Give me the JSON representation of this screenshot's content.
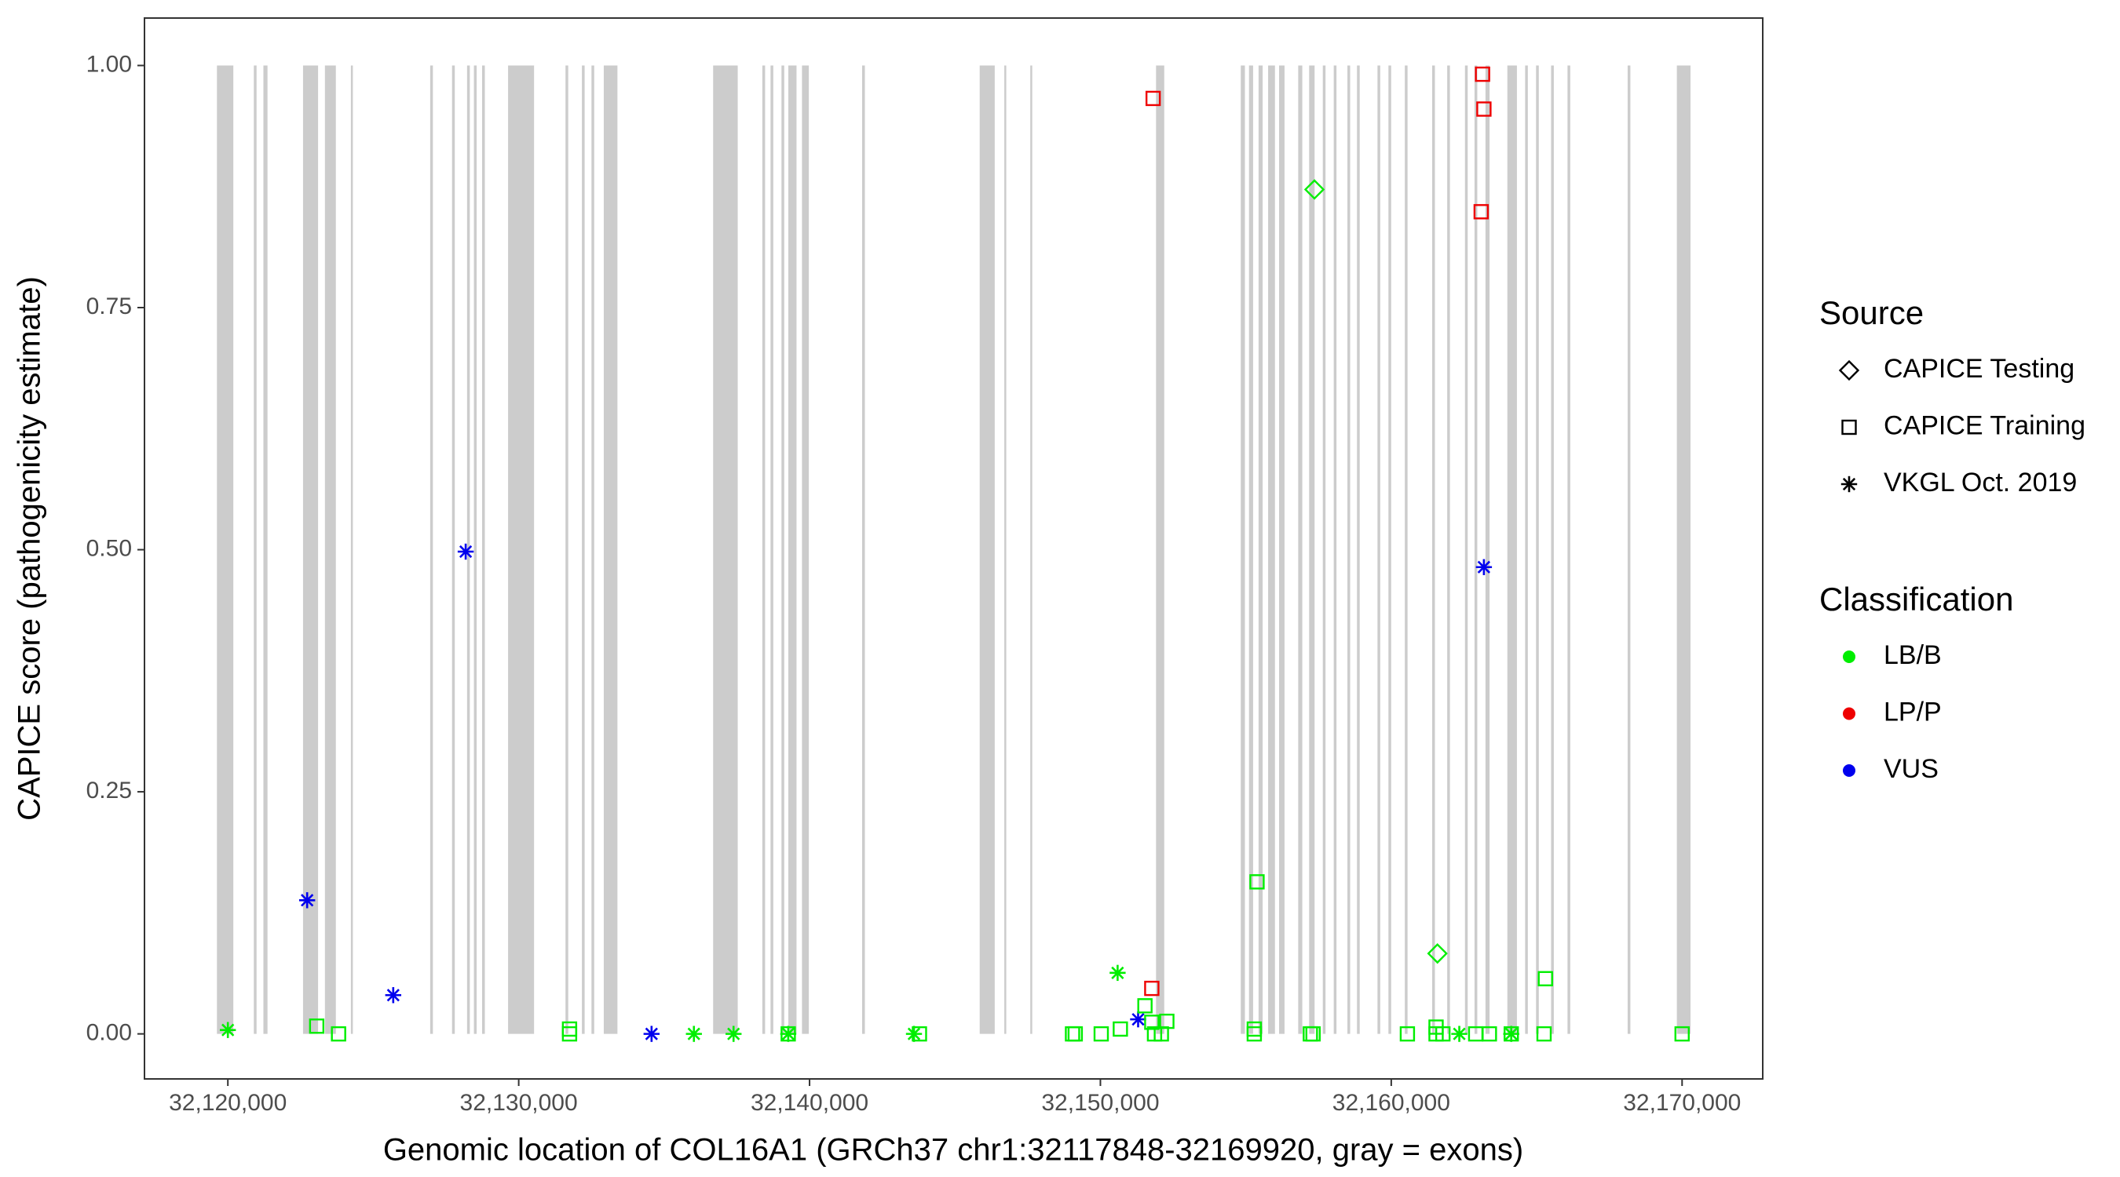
{
  "chart_data": {
    "type": "scatter",
    "x_label": "Genomic location of COL16A1 (GRCh37 chr1:32117848-32169920, gray = exons)",
    "y_label": "CAPICE score (pathogenicity estimate)",
    "xlim": [
      32117133,
      32172773
    ],
    "ylim": [
      -0.0465,
      1.049
    ],
    "xticks": [
      {
        "value": 32120000,
        "label": "32,120,000"
      },
      {
        "value": 32130000,
        "label": "32,130,000"
      },
      {
        "value": 32140000,
        "label": "32,140,000"
      },
      {
        "value": 32150000,
        "label": "32,150,000"
      },
      {
        "value": 32160000,
        "label": "32,160,000"
      },
      {
        "value": 32170000,
        "label": "32,170,000"
      }
    ],
    "yticks": [
      {
        "value": 0,
        "label": "0.00"
      },
      {
        "value": 0.25,
        "label": "0.25"
      },
      {
        "value": 0.5,
        "label": "0.50"
      },
      {
        "value": 0.75,
        "label": "0.75"
      },
      {
        "value": 1,
        "label": "1.00"
      }
    ],
    "exon_color": "#cccccc",
    "exons": [
      [
        32119624,
        32120188
      ],
      [
        32120893,
        32120987
      ],
      [
        32121222,
        32121363
      ],
      [
        32122585,
        32123102
      ],
      [
        32123337,
        32123713
      ],
      [
        32124230,
        32124277
      ],
      [
        32126956,
        32127050
      ],
      [
        32127708,
        32127802
      ],
      [
        32128225,
        32128319
      ],
      [
        32128460,
        32128554
      ],
      [
        32128742,
        32128836
      ],
      [
        32129635,
        32130528
      ],
      [
        32131609,
        32131703
      ],
      [
        32132173,
        32132267
      ],
      [
        32132502,
        32132596
      ],
      [
        32132925,
        32133395
      ],
      [
        32136685,
        32137531
      ],
      [
        32138377,
        32138471
      ],
      [
        32138659,
        32138753
      ],
      [
        32139035,
        32139129
      ],
      [
        32139270,
        32139552
      ],
      [
        32139740,
        32139975
      ],
      [
        32141808,
        32141902
      ],
      [
        32145850,
        32146367
      ],
      [
        32146696,
        32146743
      ],
      [
        32147589,
        32147636
      ],
      [
        32151913,
        32152195
      ],
      [
        32154827,
        32154968
      ],
      [
        32155109,
        32155250
      ],
      [
        32155438,
        32155579
      ],
      [
        32155767,
        32156002
      ],
      [
        32156143,
        32156331
      ],
      [
        32156801,
        32156942
      ],
      [
        32157177,
        32157365
      ],
      [
        32157647,
        32157741
      ],
      [
        32158023,
        32158117
      ],
      [
        32158493,
        32158587
      ],
      [
        32158822,
        32158916
      ],
      [
        32159527,
        32159621
      ],
      [
        32159903,
        32159997
      ],
      [
        32160467,
        32160561
      ],
      [
        32161407,
        32161501
      ],
      [
        32161924,
        32162018
      ],
      [
        32162535,
        32162629
      ],
      [
        32162864,
        32162958
      ],
      [
        32163240,
        32163381
      ],
      [
        32163992,
        32164321
      ],
      [
        32164603,
        32164697
      ],
      [
        32164979,
        32165073
      ],
      [
        32165496,
        32165590
      ],
      [
        32166060,
        32166154
      ],
      [
        32168128,
        32168222
      ],
      [
        32169820,
        32170290
      ]
    ],
    "legend_shape": {
      "title": "Source",
      "entries": [
        {
          "name": "CAPICE Testing",
          "shape": "diamond"
        },
        {
          "name": "CAPICE Training",
          "shape": "square"
        },
        {
          "name": "VKGL Oct. 2019",
          "shape": "asterisk"
        }
      ]
    },
    "legend_color": {
      "title": "Classification",
      "entries": [
        {
          "name": "LB/B",
          "color": "#00ee00"
        },
        {
          "name": "LP/P",
          "color": "#ee0000"
        },
        {
          "name": "VUS",
          "color": "#0000ee"
        }
      ]
    },
    "series": [
      {
        "source": "VKGL Oct. 2019",
        "classification": "LB/B",
        "x": [
          32120000,
          32136024,
          32137387,
          32139267,
          32143590,
          32150592,
          32162340,
          32164126
        ],
        "values": [
          0.004,
          0,
          0,
          0,
          0,
          0.063,
          0,
          0
        ]
      },
      {
        "source": "VKGL Oct. 2019",
        "classification": "VUS",
        "x": [
          32122726,
          32125686,
          32128177,
          32134568,
          32151297,
          32163186
        ],
        "values": [
          0.138,
          0.04,
          0.498,
          0,
          0.015,
          0.482
        ]
      },
      {
        "source": "CAPICE Training",
        "classification": "LB/B",
        "x": [
          32123055,
          32123806,
          32131748,
          32131748,
          32139267,
          32143778,
          32149041,
          32149135,
          32150028,
          32150686,
          32151532,
          32151767,
          32151861,
          32152096,
          32152284,
          32155385,
          32155291,
          32155291,
          32157218,
          32157312,
          32160555,
          32161541,
          32161541,
          32161776,
          32162904,
          32163374,
          32164126,
          32165301,
          32165254,
          32170000
        ],
        "values": [
          0.008,
          0,
          0.005,
          0,
          0,
          0,
          0,
          0,
          0,
          0.005,
          0.029,
          0.012,
          0,
          0,
          0.013,
          0.157,
          0.005,
          0,
          0,
          0,
          0,
          0.007,
          0,
          0,
          0,
          0,
          0,
          0.057,
          0,
          0
        ]
      },
      {
        "source": "CAPICE Training",
        "classification": "LP/P",
        "x": [
          32151814,
          32151767,
          32163139,
          32163186,
          32163092
        ],
        "values": [
          0.966,
          0.047,
          0.991,
          0.955,
          0.849
        ]
      },
      {
        "source": "CAPICE Testing",
        "classification": "LB/B",
        "x": [
          32157359,
          32161588
        ],
        "values": [
          0.872,
          0.083
        ]
      }
    ]
  }
}
